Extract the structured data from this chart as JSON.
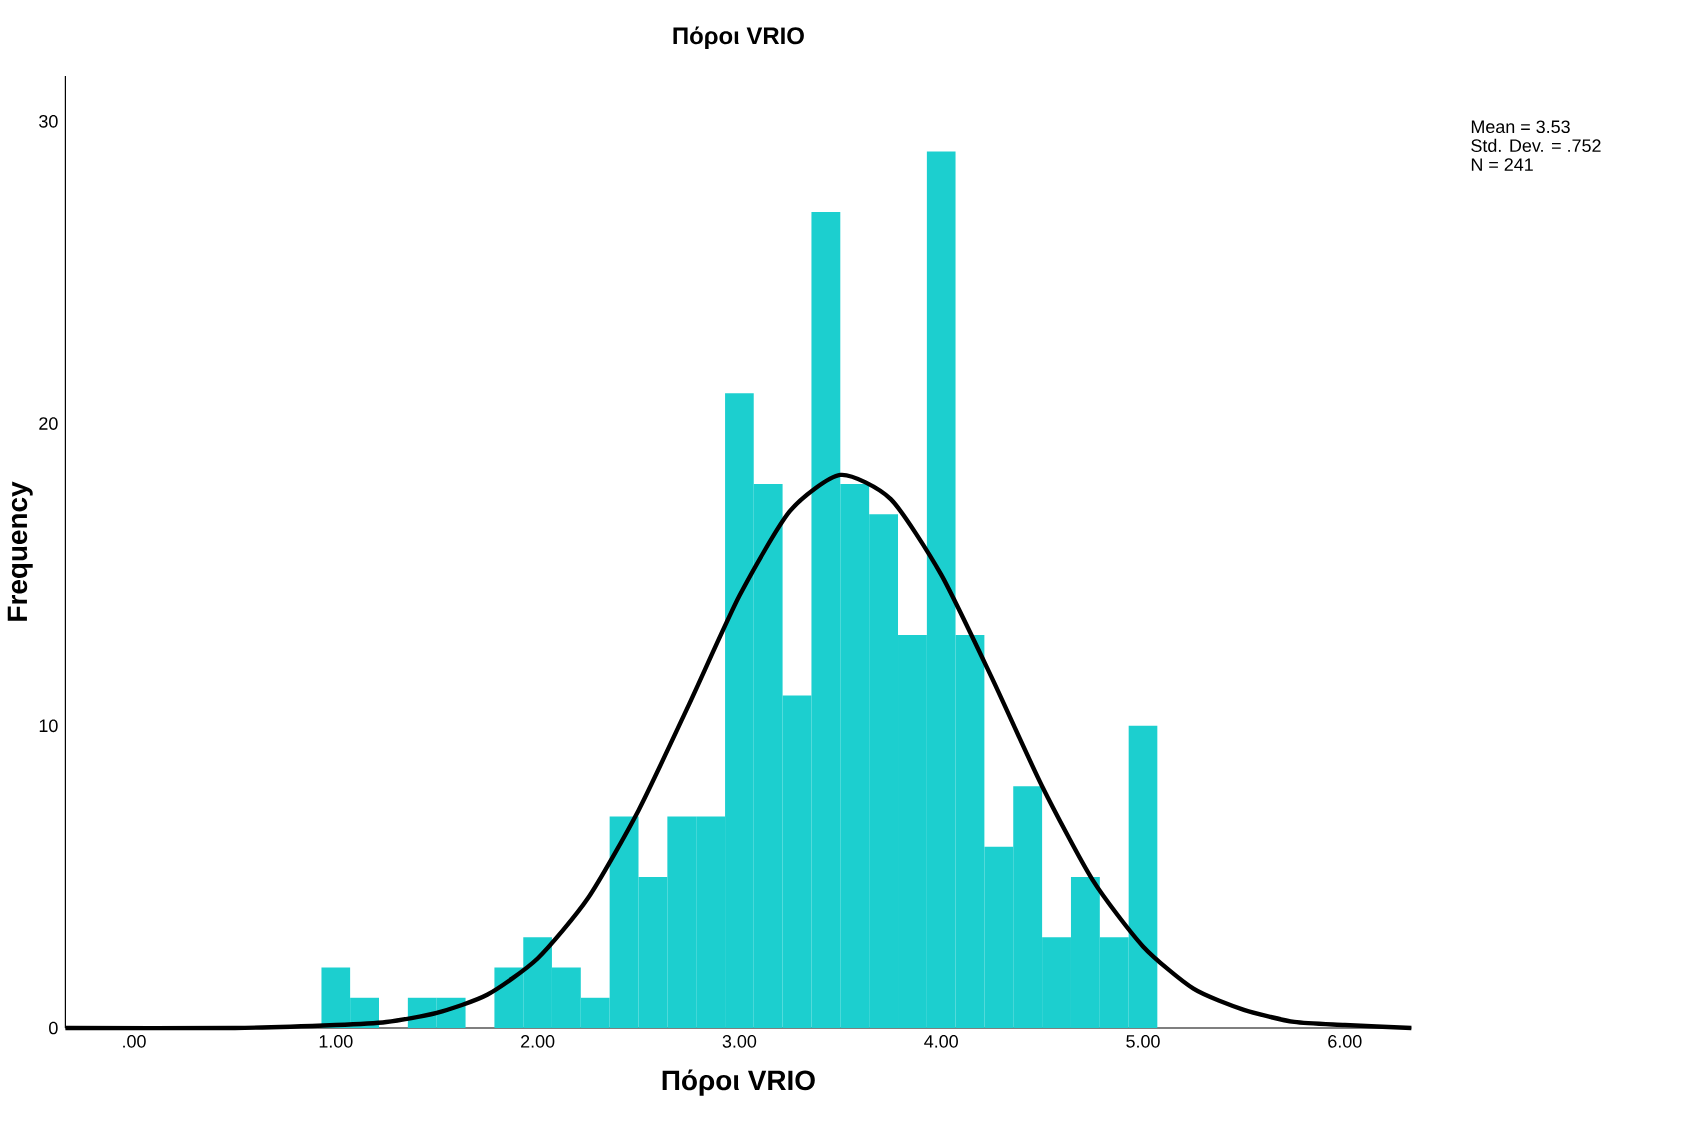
{
  "chart_data": {
    "type": "histogram",
    "title": "Πόροι VRIO",
    "xlabel": "Πόροι VRIO",
    "ylabel": "Frequency",
    "annotations": [
      "Mean = 3.53",
      "Std. Dev. = .752",
      "N = 241"
    ],
    "bins": [
      0.929,
      1.071,
      1.214,
      1.357,
      1.5,
      1.643,
      1.786,
      1.929,
      2.071,
      2.214,
      2.357,
      2.5,
      2.643,
      2.786,
      2.929,
      3.071,
      3.214,
      3.357,
      3.5,
      3.643,
      3.786,
      3.929,
      4.071,
      4.214,
      4.357,
      4.5,
      4.643,
      4.786,
      4.929,
      5.071
    ],
    "values": [
      2,
      1,
      0,
      1,
      1,
      0,
      2,
      3,
      2,
      1,
      7,
      5,
      7,
      7,
      21,
      18,
      11,
      27,
      18,
      17,
      13,
      29,
      13,
      6,
      8,
      3,
      5,
      3,
      10
    ],
    "color": "#1ccfcf",
    "series": [
      {
        "type": "line",
        "color": "#000000",
        "x": [
          -0.34,
          0.5,
          1.0,
          1.25,
          1.5,
          1.75,
          2.0,
          2.25,
          2.5,
          2.75,
          3.0,
          3.25,
          3.5,
          3.75,
          4.0,
          4.25,
          4.5,
          4.75,
          5.0,
          5.25,
          5.5,
          5.75,
          6.0,
          6.33
        ],
        "values": [
          0,
          0,
          0.1,
          0.2,
          0.5,
          1.1,
          2.3,
          4.3,
          7.2,
          10.7,
          14.3,
          17.1,
          18.3,
          17.5,
          15.0,
          11.6,
          8.0,
          4.9,
          2.7,
          1.3,
          0.6,
          0.2,
          0.1,
          0
        ]
      }
    ],
    "xlim": [
      -0.34,
      6.33
    ],
    "ylim": [
      0,
      31.5
    ],
    "xticks": [
      {
        "value": 0,
        "label": ".00"
      },
      {
        "value": 1,
        "label": "1.00"
      },
      {
        "value": 2,
        "label": "2.00"
      },
      {
        "value": 3,
        "label": "3.00"
      },
      {
        "value": 4,
        "label": "4.00"
      },
      {
        "value": 5,
        "label": "5.00"
      },
      {
        "value": 6,
        "label": "6.00"
      }
    ],
    "yticks": [
      0,
      10,
      20,
      30
    ]
  }
}
